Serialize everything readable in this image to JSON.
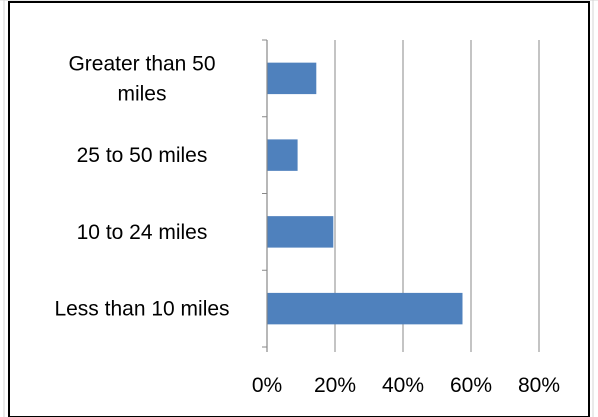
{
  "chart_data": {
    "type": "bar",
    "orientation": "horizontal",
    "categories": [
      [
        "Greater than 50",
        "miles"
      ],
      [
        "25 to 50 miles"
      ],
      [
        "10 to 24 miles"
      ],
      [
        "Less than 10 miles"
      ]
    ],
    "values": [
      0.145,
      0.09,
      0.195,
      0.575
    ],
    "xlim": [
      0,
      0.8
    ],
    "x_ticks": [
      "0%",
      "20%",
      "40%",
      "60%",
      "80%"
    ],
    "grid": "vertical",
    "legend": "none",
    "title": "",
    "xlabel": "",
    "ylabel": ""
  },
  "colors": {
    "bar": "#4f81bd",
    "gridline": "#888888",
    "axis": "#888888",
    "frame": "#000000",
    "sheet_grid": "#d4d4d4"
  }
}
